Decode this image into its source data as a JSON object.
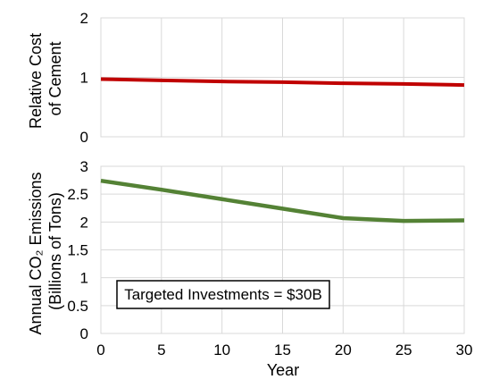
{
  "chart_data": [
    {
      "type": "line",
      "ylabel_lines": [
        "Relative Cost",
        "of Cement"
      ],
      "x": [
        0,
        5,
        10,
        15,
        20,
        25,
        30
      ],
      "series": [
        {
          "values": [
            0.97,
            0.95,
            0.93,
            0.92,
            0.9,
            0.89,
            0.87
          ],
          "color": "#c00000"
        }
      ],
      "xlim": [
        0,
        30
      ],
      "ylim": [
        0,
        2
      ],
      "yticks": [
        "0",
        "1",
        "2"
      ],
      "grid": true
    },
    {
      "type": "line",
      "ylabel_lines": [
        "Annual CO₂ Emissions",
        "(Billions of Tons)"
      ],
      "xlabel": "Year",
      "x": [
        0,
        5,
        10,
        15,
        20,
        25,
        30
      ],
      "xticks": [
        "0",
        "5",
        "10",
        "15",
        "20",
        "25",
        "30"
      ],
      "series": [
        {
          "values": [
            2.74,
            2.58,
            2.41,
            2.24,
            2.07,
            2.02,
            2.03
          ],
          "color": "#548235"
        }
      ],
      "xlim": [
        0,
        30
      ],
      "ylim": [
        0,
        3
      ],
      "yticks": [
        "0",
        "0.5",
        "1",
        "1.5",
        "2",
        "2.5",
        "3"
      ],
      "grid": true,
      "annotation": "Targeted Investments = $30B"
    }
  ]
}
